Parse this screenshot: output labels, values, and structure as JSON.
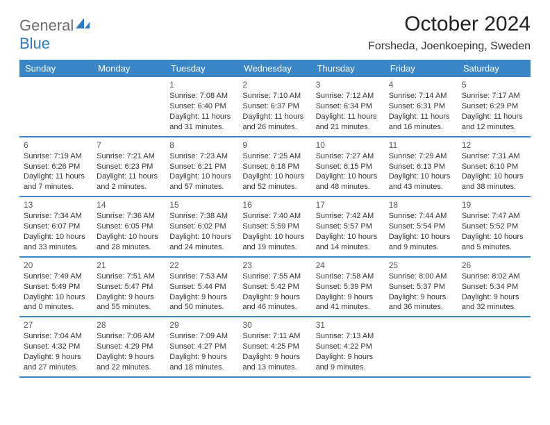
{
  "logo": {
    "word1": "General",
    "word2": "Blue"
  },
  "title": "October 2024",
  "location": "Forsheda, Joenkoeping, Sweden",
  "colors": {
    "header_blue": "#3b86c7",
    "logo_gray": "#6c6c6c",
    "logo_blue": "#2f7bc3",
    "text": "#333333",
    "background": "#ffffff"
  },
  "dayHeaders": [
    "Sunday",
    "Monday",
    "Tuesday",
    "Wednesday",
    "Thursday",
    "Friday",
    "Saturday"
  ],
  "weeks": [
    [
      null,
      null,
      {
        "n": "1",
        "sr": "7:08 AM",
        "ss": "6:40 PM",
        "dl1": "Daylight: 11 hours",
        "dl2": "and 31 minutes."
      },
      {
        "n": "2",
        "sr": "7:10 AM",
        "ss": "6:37 PM",
        "dl1": "Daylight: 11 hours",
        "dl2": "and 26 minutes."
      },
      {
        "n": "3",
        "sr": "7:12 AM",
        "ss": "6:34 PM",
        "dl1": "Daylight: 11 hours",
        "dl2": "and 21 minutes."
      },
      {
        "n": "4",
        "sr": "7:14 AM",
        "ss": "6:31 PM",
        "dl1": "Daylight: 11 hours",
        "dl2": "and 16 minutes."
      },
      {
        "n": "5",
        "sr": "7:17 AM",
        "ss": "6:29 PM",
        "dl1": "Daylight: 11 hours",
        "dl2": "and 12 minutes."
      }
    ],
    [
      {
        "n": "6",
        "sr": "7:19 AM",
        "ss": "6:26 PM",
        "dl1": "Daylight: 11 hours",
        "dl2": "and 7 minutes."
      },
      {
        "n": "7",
        "sr": "7:21 AM",
        "ss": "6:23 PM",
        "dl1": "Daylight: 11 hours",
        "dl2": "and 2 minutes."
      },
      {
        "n": "8",
        "sr": "7:23 AM",
        "ss": "6:21 PM",
        "dl1": "Daylight: 10 hours",
        "dl2": "and 57 minutes."
      },
      {
        "n": "9",
        "sr": "7:25 AM",
        "ss": "6:18 PM",
        "dl1": "Daylight: 10 hours",
        "dl2": "and 52 minutes."
      },
      {
        "n": "10",
        "sr": "7:27 AM",
        "ss": "6:15 PM",
        "dl1": "Daylight: 10 hours",
        "dl2": "and 48 minutes."
      },
      {
        "n": "11",
        "sr": "7:29 AM",
        "ss": "6:13 PM",
        "dl1": "Daylight: 10 hours",
        "dl2": "and 43 minutes."
      },
      {
        "n": "12",
        "sr": "7:31 AM",
        "ss": "6:10 PM",
        "dl1": "Daylight: 10 hours",
        "dl2": "and 38 minutes."
      }
    ],
    [
      {
        "n": "13",
        "sr": "7:34 AM",
        "ss": "6:07 PM",
        "dl1": "Daylight: 10 hours",
        "dl2": "and 33 minutes."
      },
      {
        "n": "14",
        "sr": "7:36 AM",
        "ss": "6:05 PM",
        "dl1": "Daylight: 10 hours",
        "dl2": "and 28 minutes."
      },
      {
        "n": "15",
        "sr": "7:38 AM",
        "ss": "6:02 PM",
        "dl1": "Daylight: 10 hours",
        "dl2": "and 24 minutes."
      },
      {
        "n": "16",
        "sr": "7:40 AM",
        "ss": "5:59 PM",
        "dl1": "Daylight: 10 hours",
        "dl2": "and 19 minutes."
      },
      {
        "n": "17",
        "sr": "7:42 AM",
        "ss": "5:57 PM",
        "dl1": "Daylight: 10 hours",
        "dl2": "and 14 minutes."
      },
      {
        "n": "18",
        "sr": "7:44 AM",
        "ss": "5:54 PM",
        "dl1": "Daylight: 10 hours",
        "dl2": "and 9 minutes."
      },
      {
        "n": "19",
        "sr": "7:47 AM",
        "ss": "5:52 PM",
        "dl1": "Daylight: 10 hours",
        "dl2": "and 5 minutes."
      }
    ],
    [
      {
        "n": "20",
        "sr": "7:49 AM",
        "ss": "5:49 PM",
        "dl1": "Daylight: 10 hours",
        "dl2": "and 0 minutes."
      },
      {
        "n": "21",
        "sr": "7:51 AM",
        "ss": "5:47 PM",
        "dl1": "Daylight: 9 hours",
        "dl2": "and 55 minutes."
      },
      {
        "n": "22",
        "sr": "7:53 AM",
        "ss": "5:44 PM",
        "dl1": "Daylight: 9 hours",
        "dl2": "and 50 minutes."
      },
      {
        "n": "23",
        "sr": "7:55 AM",
        "ss": "5:42 PM",
        "dl1": "Daylight: 9 hours",
        "dl2": "and 46 minutes."
      },
      {
        "n": "24",
        "sr": "7:58 AM",
        "ss": "5:39 PM",
        "dl1": "Daylight: 9 hours",
        "dl2": "and 41 minutes."
      },
      {
        "n": "25",
        "sr": "8:00 AM",
        "ss": "5:37 PM",
        "dl1": "Daylight: 9 hours",
        "dl2": "and 36 minutes."
      },
      {
        "n": "26",
        "sr": "8:02 AM",
        "ss": "5:34 PM",
        "dl1": "Daylight: 9 hours",
        "dl2": "and 32 minutes."
      }
    ],
    [
      {
        "n": "27",
        "sr": "7:04 AM",
        "ss": "4:32 PM",
        "dl1": "Daylight: 9 hours",
        "dl2": "and 27 minutes."
      },
      {
        "n": "28",
        "sr": "7:06 AM",
        "ss": "4:29 PM",
        "dl1": "Daylight: 9 hours",
        "dl2": "and 22 minutes."
      },
      {
        "n": "29",
        "sr": "7:09 AM",
        "ss": "4:27 PM",
        "dl1": "Daylight: 9 hours",
        "dl2": "and 18 minutes."
      },
      {
        "n": "30",
        "sr": "7:11 AM",
        "ss": "4:25 PM",
        "dl1": "Daylight: 9 hours",
        "dl2": "and 13 minutes."
      },
      {
        "n": "31",
        "sr": "7:13 AM",
        "ss": "4:22 PM",
        "dl1": "Daylight: 9 hours",
        "dl2": "and 9 minutes."
      },
      null,
      null
    ]
  ]
}
